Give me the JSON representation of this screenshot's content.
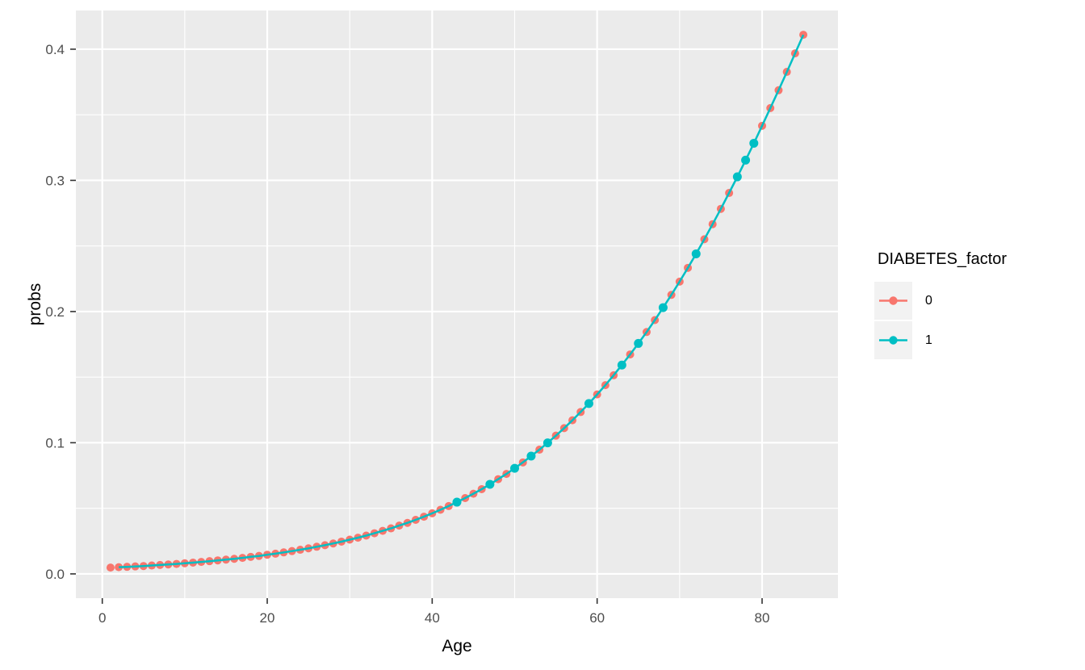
{
  "chart_data": {
    "type": "scatter-line",
    "title": "",
    "xlabel": "Age",
    "ylabel": "probs",
    "xlim": [
      -3.2,
      89.2
    ],
    "ylim": [
      -0.0185,
      0.4295
    ],
    "grid": "major-minor-white-on-gray",
    "x_ticks": [
      {
        "label": "0",
        "value": 0
      },
      {
        "label": "20",
        "value": 20
      },
      {
        "label": "40",
        "value": 40
      },
      {
        "label": "60",
        "value": 60
      },
      {
        "label": "80",
        "value": 80
      }
    ],
    "x_minor": [
      10,
      30,
      50,
      70
    ],
    "y_ticks": [
      {
        "label": "0.0",
        "value": 0.0
      },
      {
        "label": "0.1",
        "value": 0.1
      },
      {
        "label": "0.2",
        "value": 0.2
      },
      {
        "label": "0.3",
        "value": 0.3
      },
      {
        "label": "0.4",
        "value": 0.4
      }
    ],
    "y_minor": [
      0.05,
      0.15,
      0.25,
      0.35
    ],
    "legend": {
      "title": "DIABETES_factor",
      "position": "right",
      "items": [
        {
          "label": "0",
          "color": "#F8766D"
        },
        {
          "label": "1",
          "color": "#00BFC4"
        }
      ]
    },
    "series": [
      {
        "name": "0",
        "color": "#F8766D",
        "geom": "point",
        "x": [
          1,
          2,
          3,
          4,
          5,
          6,
          7,
          8,
          9,
          10,
          11,
          12,
          13,
          14,
          15,
          16,
          17,
          18,
          19,
          20,
          21,
          22,
          23,
          24,
          25,
          26,
          27,
          28,
          29,
          30,
          31,
          32,
          33,
          34,
          35,
          36,
          37,
          38,
          39,
          40,
          41,
          42,
          43,
          44,
          45,
          46,
          47,
          48,
          49,
          50,
          51,
          52,
          53,
          54,
          55,
          56,
          57,
          58,
          59,
          60,
          61,
          62,
          63,
          64,
          65,
          66,
          67,
          68,
          69,
          70,
          71,
          72,
          73,
          74,
          75,
          76,
          77,
          78,
          79,
          80,
          81,
          82,
          83,
          84,
          85
        ],
        "y": [
          0.0048,
          0.0051,
          0.0054,
          0.0057,
          0.006,
          0.0064,
          0.0068,
          0.0072,
          0.0076,
          0.0081,
          0.0086,
          0.0091,
          0.0097,
          0.0103,
          0.0109,
          0.0115,
          0.0122,
          0.013,
          0.0137,
          0.0146,
          0.0154,
          0.0164,
          0.0174,
          0.0184,
          0.0195,
          0.0207,
          0.0219,
          0.0232,
          0.0246,
          0.0261,
          0.0276,
          0.0292,
          0.031,
          0.0328,
          0.0347,
          0.0368,
          0.0389,
          0.0412,
          0.0436,
          0.0462,
          0.0489,
          0.0517,
          0.0547,
          0.0578,
          0.0611,
          0.0646,
          0.0683,
          0.0722,
          0.0762,
          0.0805,
          0.085,
          0.0898,
          0.0947,
          0.0999,
          0.1054,
          0.1111,
          0.1171,
          0.1234,
          0.1299,
          0.1368,
          0.1439,
          0.1514,
          0.1592,
          0.1673,
          0.1757,
          0.1844,
          0.1935,
          0.203,
          0.2127,
          0.2228,
          0.2333,
          0.244,
          0.2551,
          0.2666,
          0.2783,
          0.2904,
          0.3027,
          0.3154,
          0.3283,
          0.3416,
          0.3551,
          0.3687,
          0.3827,
          0.3968,
          0.411
        ]
      },
      {
        "name": "1",
        "color": "#00BFC4",
        "geom": "point-line",
        "line_follows_series_0": true,
        "line_x_range": [
          2,
          85
        ],
        "x": [
          43,
          47,
          50,
          52,
          54,
          59,
          63,
          65,
          68,
          72,
          77,
          78,
          79
        ],
        "y": [
          0.0547,
          0.0683,
          0.0805,
          0.0898,
          0.0999,
          0.1299,
          0.1592,
          0.1757,
          0.203,
          0.244,
          0.3027,
          0.3154,
          0.3283
        ]
      }
    ],
    "colors": {
      "panel_bg": "#EBEBEB",
      "grid": "#FFFFFF",
      "tick_mark": "#333333",
      "tick_text": "#4D4D4D",
      "axis_title": "#000000",
      "legend_key_bg": "#F2F2F2",
      "series0": "#F8766D",
      "series1": "#00BFC4"
    }
  }
}
